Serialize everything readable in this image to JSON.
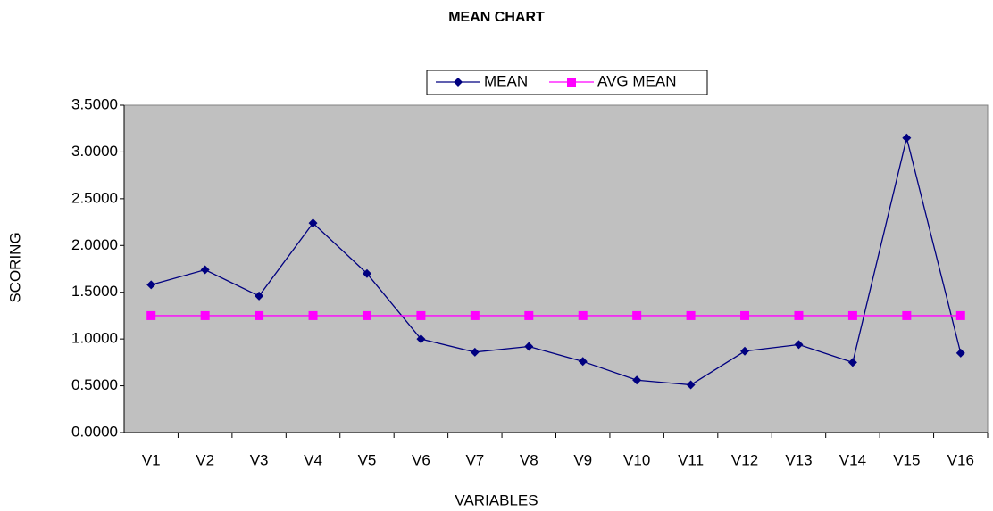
{
  "chart_data": {
    "type": "line",
    "title": "MEAN CHART",
    "x_label": "VARIABLES",
    "y_label": "SCORING",
    "categories": [
      "V1",
      "V2",
      "V3",
      "V4",
      "V5",
      "V6",
      "V7",
      "V8",
      "V9",
      "V10",
      "V11",
      "V12",
      "V13",
      "V14",
      "V15",
      "V16"
    ],
    "series": [
      {
        "name": "MEAN",
        "color": "#000080",
        "marker": "diamond",
        "values": [
          1.58,
          1.74,
          1.46,
          2.24,
          1.7,
          1.0,
          0.86,
          0.92,
          0.76,
          0.56,
          0.51,
          0.87,
          0.94,
          0.75,
          3.15,
          0.85
        ]
      },
      {
        "name": "AVG MEAN",
        "color": "#ff00ff",
        "marker": "square",
        "values": [
          1.25,
          1.25,
          1.25,
          1.25,
          1.25,
          1.25,
          1.25,
          1.25,
          1.25,
          1.25,
          1.25,
          1.25,
          1.25,
          1.25,
          1.25,
          1.25
        ]
      }
    ],
    "ylim": [
      0,
      3.5
    ],
    "yticks": [
      {
        "value": 0,
        "label": "0.0000"
      },
      {
        "value": 0.5,
        "label": "0.5000"
      },
      {
        "value": 1,
        "label": "1.0000"
      },
      {
        "value": 1.5,
        "label": "1.5000"
      },
      {
        "value": 2,
        "label": "2.0000"
      },
      {
        "value": 2.5,
        "label": "2.5000"
      },
      {
        "value": 3,
        "label": "3.0000"
      },
      {
        "value": 3.5,
        "label": "3.5000"
      }
    ],
    "grid": false,
    "legend": "top",
    "plot_background": "#c0c0c0"
  }
}
